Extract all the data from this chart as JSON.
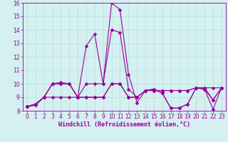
{
  "xlabel": "Windchill (Refroidissement éolien,°C)",
  "x": [
    0,
    1,
    2,
    3,
    4,
    5,
    6,
    7,
    8,
    9,
    10,
    11,
    12,
    13,
    14,
    15,
    16,
    17,
    18,
    19,
    20,
    21,
    22,
    23
  ],
  "line1": [
    8.3,
    8.5,
    9.0,
    10.0,
    10.1,
    10.0,
    9.0,
    10.0,
    10.0,
    10.0,
    16.0,
    15.5,
    10.7,
    8.6,
    9.5,
    9.6,
    9.3,
    8.2,
    8.2,
    8.5,
    9.7,
    9.6,
    8.1,
    9.7
  ],
  "line2": [
    8.3,
    8.5,
    9.0,
    10.0,
    10.0,
    10.0,
    9.0,
    12.8,
    13.7,
    10.0,
    14.0,
    13.8,
    9.6,
    9.0,
    9.5,
    9.6,
    9.3,
    8.2,
    8.2,
    8.5,
    9.7,
    9.6,
    8.8,
    9.7
  ],
  "line3": [
    8.3,
    8.5,
    9.0,
    10.0,
    10.0,
    10.0,
    9.0,
    9.0,
    9.0,
    9.0,
    10.0,
    10.0,
    9.0,
    9.0,
    9.5,
    9.5,
    9.5,
    9.5,
    9.5,
    9.5,
    9.7,
    9.7,
    8.8,
    9.7
  ],
  "line4": [
    8.3,
    8.4,
    9.0,
    9.0,
    9.0,
    9.0,
    9.0,
    9.0,
    9.0,
    9.0,
    10.0,
    10.0,
    9.0,
    9.0,
    9.5,
    9.5,
    9.5,
    9.5,
    9.5,
    9.5,
    9.7,
    9.7,
    9.7,
    9.7
  ],
  "line_color": "#990099",
  "bg_color": "#d4f0f0",
  "grid_color": "#bbdddd",
  "ylim": [
    8,
    16
  ],
  "xlim": [
    -0.5,
    23.5
  ],
  "yticks": [
    8,
    9,
    10,
    11,
    12,
    13,
    14,
    15,
    16
  ],
  "xticks": [
    0,
    1,
    2,
    3,
    4,
    5,
    6,
    7,
    8,
    9,
    10,
    11,
    12,
    13,
    14,
    15,
    16,
    17,
    18,
    19,
    20,
    21,
    22,
    23
  ],
  "tick_fontsize": 5.5,
  "xlabel_fontsize": 6.0
}
